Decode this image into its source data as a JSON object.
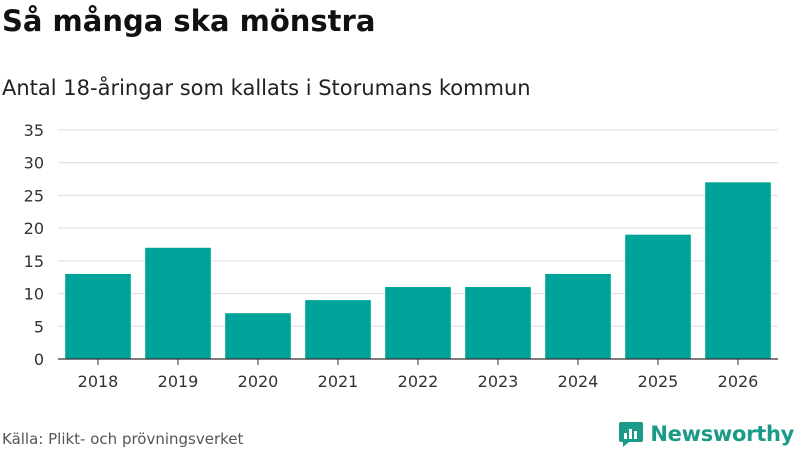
{
  "title": "Så många ska mönstra",
  "subtitle": "Antal 18-åringar som kallats i Storumans kommun",
  "source": "Källa: Plikt- och prövningsverket",
  "brand": {
    "name": "Newsworthy",
    "logo_icon": "newsworthy-logo-icon",
    "color": "#1b9a8a"
  },
  "colors": {
    "bar": "#00a39a",
    "grid": "#dddddd",
    "axis": "#333333"
  },
  "chart_data": {
    "type": "bar",
    "title": "Så många ska mönstra",
    "subtitle": "Antal 18-åringar som kallats i Storumans kommun",
    "xlabel": "",
    "ylabel": "",
    "categories": [
      "2018",
      "2019",
      "2020",
      "2021",
      "2022",
      "2023",
      "2024",
      "2025",
      "2026"
    ],
    "values": [
      13,
      17,
      7,
      9,
      11,
      11,
      13,
      19,
      27
    ],
    "ylim": [
      0,
      35
    ],
    "yticks": [
      0,
      5,
      10,
      15,
      20,
      25,
      30,
      35
    ],
    "grid": true,
    "legend": "none"
  }
}
